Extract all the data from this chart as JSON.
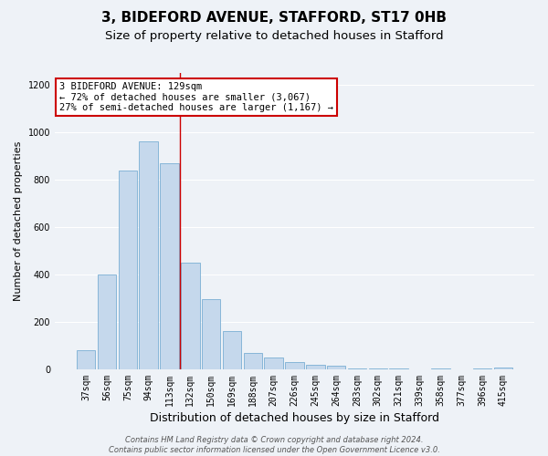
{
  "title": "3, BIDEFORD AVENUE, STAFFORD, ST17 0HB",
  "subtitle": "Size of property relative to detached houses in Stafford",
  "xlabel": "Distribution of detached houses by size in Stafford",
  "ylabel": "Number of detached properties",
  "categories": [
    "37sqm",
    "56sqm",
    "75sqm",
    "94sqm",
    "113sqm",
    "132sqm",
    "150sqm",
    "169sqm",
    "188sqm",
    "207sqm",
    "226sqm",
    "245sqm",
    "264sqm",
    "283sqm",
    "302sqm",
    "321sqm",
    "339sqm",
    "358sqm",
    "377sqm",
    "396sqm",
    "415sqm"
  ],
  "values": [
    80,
    400,
    840,
    960,
    870,
    450,
    295,
    160,
    70,
    50,
    30,
    20,
    15,
    5,
    3,
    3,
    0,
    5,
    0,
    5,
    8
  ],
  "bar_color": "#c5d8ec",
  "bar_edge_color": "#7aafd4",
  "red_line_index": 5,
  "ylim": [
    0,
    1250
  ],
  "yticks": [
    0,
    200,
    400,
    600,
    800,
    1000,
    1200
  ],
  "annotation_title": "3 BIDEFORD AVENUE: 129sqm",
  "annotation_line1": "← 72% of detached houses are smaller (3,067)",
  "annotation_line2": "27% of semi-detached houses are larger (1,167) →",
  "annotation_box_color": "#ffffff",
  "annotation_box_edge": "#cc0000",
  "footer_line1": "Contains HM Land Registry data © Crown copyright and database right 2024.",
  "footer_line2": "Contains public sector information licensed under the Open Government Licence v3.0.",
  "background_color": "#eef2f7",
  "grid_color": "#ffffff",
  "title_fontsize": 11,
  "subtitle_fontsize": 9.5,
  "xlabel_fontsize": 9,
  "ylabel_fontsize": 8,
  "tick_fontsize": 7,
  "annotation_fontsize": 7.5,
  "footer_fontsize": 6
}
